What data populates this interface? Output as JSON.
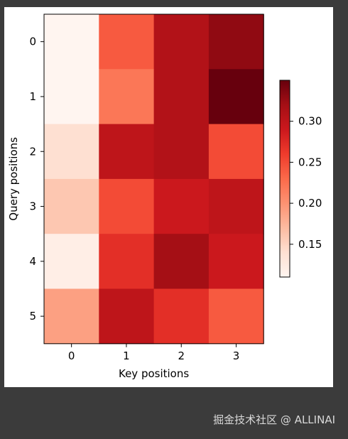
{
  "chart_data": {
    "type": "heatmap",
    "xlabel": "Key positions",
    "ylabel": "Query positions",
    "x_categories": [
      "0",
      "1",
      "2",
      "3"
    ],
    "y_categories": [
      "0",
      "1",
      "2",
      "3",
      "4",
      "5"
    ],
    "values": [
      [
        0.11,
        0.24,
        0.31,
        0.33
      ],
      [
        0.11,
        0.22,
        0.31,
        0.35
      ],
      [
        0.14,
        0.3,
        0.31,
        0.25
      ],
      [
        0.16,
        0.25,
        0.29,
        0.3
      ],
      [
        0.12,
        0.27,
        0.32,
        0.29
      ],
      [
        0.19,
        0.3,
        0.27,
        0.24
      ]
    ],
    "colorbar": {
      "min": 0.11,
      "max": 0.35,
      "ticks": [
        0.15,
        0.2,
        0.25,
        0.3
      ],
      "tick_labels": [
        "0.15",
        "0.20",
        "0.25",
        "0.30"
      ]
    },
    "colormap": "Reds"
  },
  "watermark": "掘金技术社区 @ ALLINAI"
}
